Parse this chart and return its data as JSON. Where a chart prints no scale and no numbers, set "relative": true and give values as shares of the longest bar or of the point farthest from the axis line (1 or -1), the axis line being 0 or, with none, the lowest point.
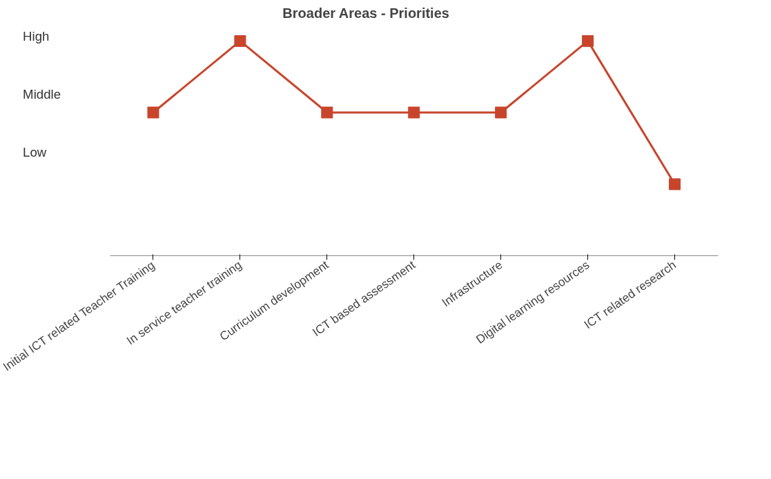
{
  "chart_data": {
    "type": "line",
    "title": "Broader Areas - Priorities",
    "categories": [
      "Initial ICT related Teacher Training",
      "In service teacher training",
      "Curriculum development",
      "ICT based assessment",
      "Infrastructure",
      "Digital learning resources",
      "ICT related research"
    ],
    "series": [
      {
        "color": "#c8452c",
        "values": [
          0.667,
          1,
          0.667,
          0.667,
          0.667,
          1,
          0.333
        ]
      }
    ],
    "relative": true,
    "annotations": [
      "High",
      "Middle",
      "Low"
    ],
    "marker": "square",
    "line_style": "solid"
  }
}
